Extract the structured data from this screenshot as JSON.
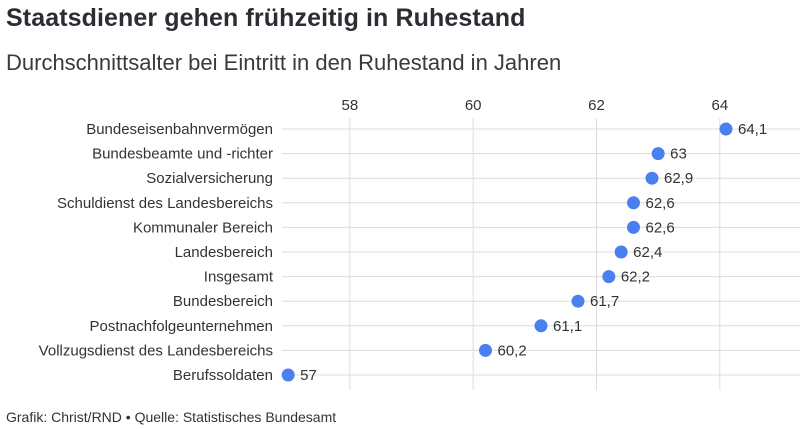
{
  "title": "Staatsdiener gehen frühzeitig in Ruhestand",
  "subtitle": "Durchschnittsalter bei Eintritt in den Ruhestand in Jahren",
  "footer": {
    "credit": "Grafik: Christ/RND",
    "separator": "•",
    "source": "Quelle: Statistisches Bundesamt"
  },
  "colors": {
    "dot": "#4a7ff0",
    "grid": "#dcdcdc"
  },
  "chart_data": {
    "type": "scatter",
    "title": "Staatsdiener gehen frühzeitig in Ruhestand",
    "subtitle": "Durchschnittsalter bei Eintritt in den Ruhestand in Jahren",
    "categories": [
      "Bundeseisenbahnvermögen",
      "Bundesbeamte und -richter",
      "Sozialversicherung",
      "Schuldienst des Landesbereichs",
      "Kommunaler Bereich",
      "Landesbereich",
      "Insgesamt",
      "Bundesbereich",
      "Postnachfolgeunternehmen",
      "Vollzugsdienst des Landesbereichs",
      "Berufssoldaten"
    ],
    "values": [
      64.1,
      63,
      62.9,
      62.6,
      62.6,
      62.4,
      62.2,
      61.7,
      61.1,
      60.2,
      57
    ],
    "labels": [
      "64,1",
      "63",
      "62,9",
      "62,6",
      "62,6",
      "62,4",
      "62,2",
      "61,7",
      "61,1",
      "60,2",
      "57"
    ],
    "xticks": [
      58,
      60,
      62,
      64
    ],
    "xlim": [
      56.9,
      65.3
    ],
    "grid": true,
    "axis_position": "top"
  }
}
